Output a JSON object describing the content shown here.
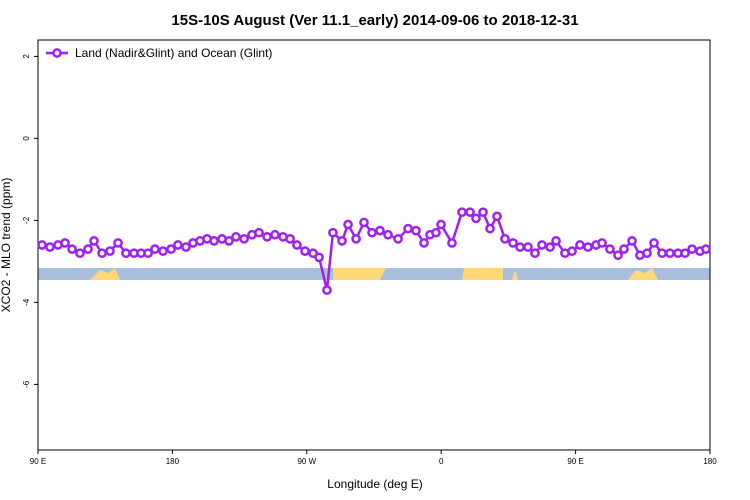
{
  "chart_data": {
    "type": "line",
    "title": "15S-10S August (Ver 11.1_early)   2014-09-06 to 2018-12-31",
    "xlabel": "Longitude (deg E)",
    "ylabel": "XCO2 - MLO trend (ppm)",
    "xlim": [
      90,
      540
    ],
    "ylim": [
      -7.6,
      2.4
    ],
    "xticks": [
      {
        "value": 90,
        "label": "90 E"
      },
      180,
      {
        "value": 270,
        "label": "90 W"
      },
      {
        "value": 360,
        "label": "0"
      },
      {
        "value": 450,
        "label": "90 E"
      },
      {
        "value": 540,
        "label": "180"
      }
    ],
    "yticks": [
      -6,
      -4,
      -2,
      0,
      2
    ],
    "legend": "top-left",
    "x": [
      92.7,
      98.0,
      103.4,
      108.1,
      112.8,
      118.1,
      123.5,
      127.5,
      132.9,
      138.2,
      143.6,
      148.9,
      154.3,
      159.0,
      163.7,
      168.3,
      173.7,
      179.1,
      183.7,
      189.1,
      193.8,
      198.5,
      203.2,
      207.9,
      213.2,
      217.9,
      222.6,
      228.0,
      233.3,
      238.0,
      243.4,
      248.7,
      254.1,
      258.8,
      263.4,
      268.8,
      274.2,
      278.2,
      283.5,
      287.5,
      293.6,
      297.6,
      303.0,
      308.3,
      313.7,
      319.0,
      324.4,
      331.1,
      337.8,
      343.1,
      348.5,
      352.5,
      356.5,
      359.9,
      367.2,
      373.9,
      379.3,
      383.3,
      388.0,
      392.7,
      397.4,
      402.7,
      408.1,
      412.8,
      418.1,
      422.8,
      427.5,
      432.9,
      436.9,
      442.9,
      447.6,
      452.9,
      458.3,
      463.7,
      467.7,
      473.0,
      478.4,
      482.4,
      487.8,
      493.1,
      497.8,
      502.5,
      507.9,
      513.2,
      518.6,
      523.3,
      528.0,
      533.3,
      537.3
    ],
    "series": [
      {
        "name": "Land (Nadir&Glint) and Ocean (Glint)",
        "color": "#a020f0",
        "values": [
          -2.6,
          -2.65,
          -2.6,
          -2.55,
          -2.7,
          -2.8,
          -2.7,
          -2.5,
          -2.8,
          -2.75,
          -2.55,
          -2.8,
          -2.8,
          -2.8,
          -2.8,
          -2.7,
          -2.75,
          -2.7,
          -2.6,
          -2.65,
          -2.55,
          -2.5,
          -2.45,
          -2.5,
          -2.45,
          -2.5,
          -2.4,
          -2.45,
          -2.35,
          -2.3,
          -2.4,
          -2.35,
          -2.4,
          -2.45,
          -2.6,
          -2.75,
          -2.8,
          -2.9,
          -3.7,
          -2.3,
          -2.5,
          -2.1,
          -2.45,
          -2.05,
          -2.3,
          -2.25,
          -2.35,
          -2.45,
          -2.2,
          -2.25,
          -2.55,
          -2.35,
          -2.3,
          -2.1,
          -2.55,
          -1.8,
          -1.8,
          -1.95,
          -1.8,
          -2.2,
          -1.9,
          -2.45,
          -2.55,
          -2.65,
          -2.65,
          -2.8,
          -2.6,
          -2.65,
          -2.5,
          -2.8,
          -2.75,
          -2.6,
          -2.65,
          -2.6,
          -2.55,
          -2.7,
          -2.85,
          -2.7,
          -2.5,
          -2.85,
          -2.8,
          -2.55,
          -2.8,
          -2.8,
          -2.8,
          -2.8,
          -2.7,
          -2.75,
          -2.7
        ]
      }
    ]
  }
}
